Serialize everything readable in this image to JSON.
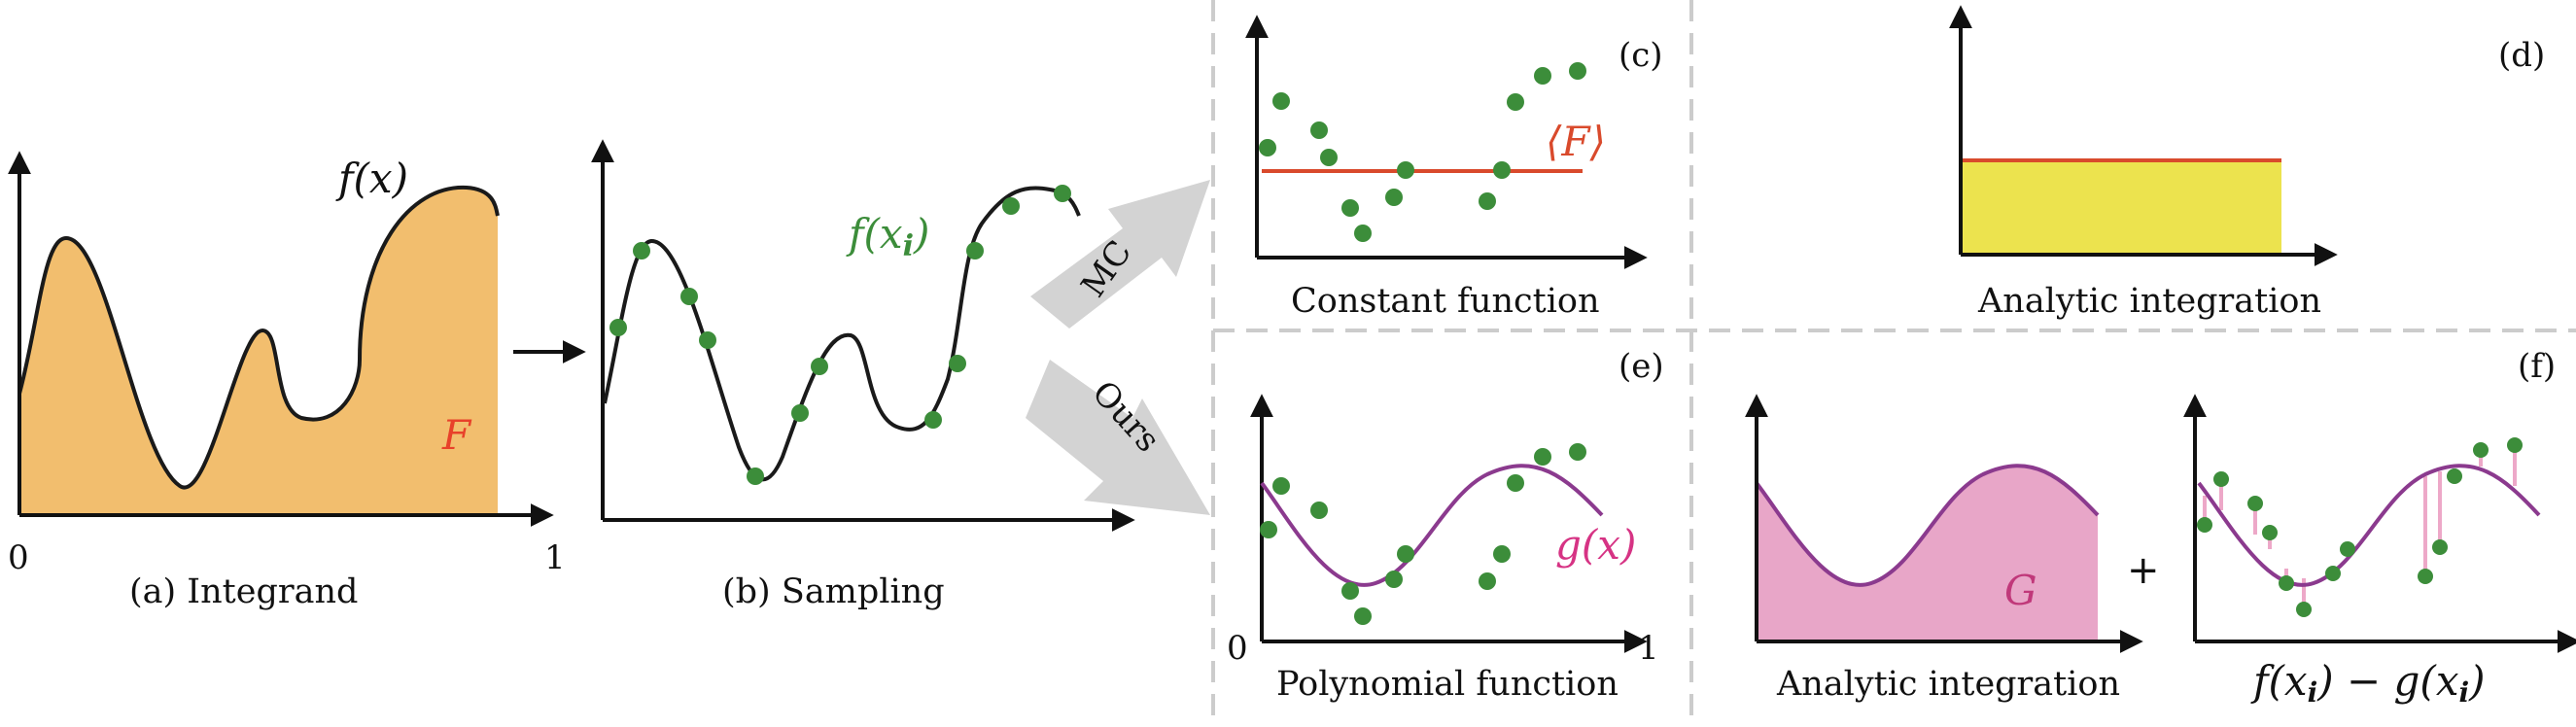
{
  "colors": {
    "integrand_fill": "#f2be6e",
    "curve": "#1a1a1a",
    "sample_dot": "#3c8d3a",
    "constant_line": "#d94a2c",
    "analytic_fill": "#ece34e",
    "poly_curve": "#8b3a8e",
    "G_fill": "#e8a6c8",
    "residual_line": "#eda8c8",
    "divider": "#cccccc",
    "big_arrow": "#d3d3d3",
    "F_label": "#e8412a",
    "fx_label": "#111111",
    "fxi_label": "#3c8d3a",
    "gx_label": "#d63384",
    "G_label": "#c0387a"
  },
  "panel_a": {
    "caption": "(a) Integrand",
    "tick_zero": "0",
    "tick_one": "1",
    "curve_label": "f(x)",
    "area_label": "F"
  },
  "panel_b": {
    "caption": "(b) Sampling",
    "sample_label": "f(x",
    "sample_label_sub": "i",
    "sample_label_close": ")"
  },
  "arrows": {
    "top": "MC",
    "bottom": "Ours"
  },
  "panel_c": {
    "letter": "(c)",
    "caption": "Constant function",
    "mean_label": "⟨F⟩"
  },
  "panel_d": {
    "letter": "(d)",
    "caption": "Analytic integration"
  },
  "panel_e": {
    "letter": "(e)",
    "caption": "Polynomial function",
    "tick_zero": "0",
    "tick_one": "1",
    "curve_label": "g(x)"
  },
  "panel_f": {
    "letter": "(f)",
    "caption_left": "Analytic integration",
    "area_label": "G",
    "plus": "+",
    "residual_label": "f(x",
    "residual_sub1": "i",
    "residual_mid": ") − g(x",
    "residual_sub2": "i",
    "residual_close": ")"
  }
}
